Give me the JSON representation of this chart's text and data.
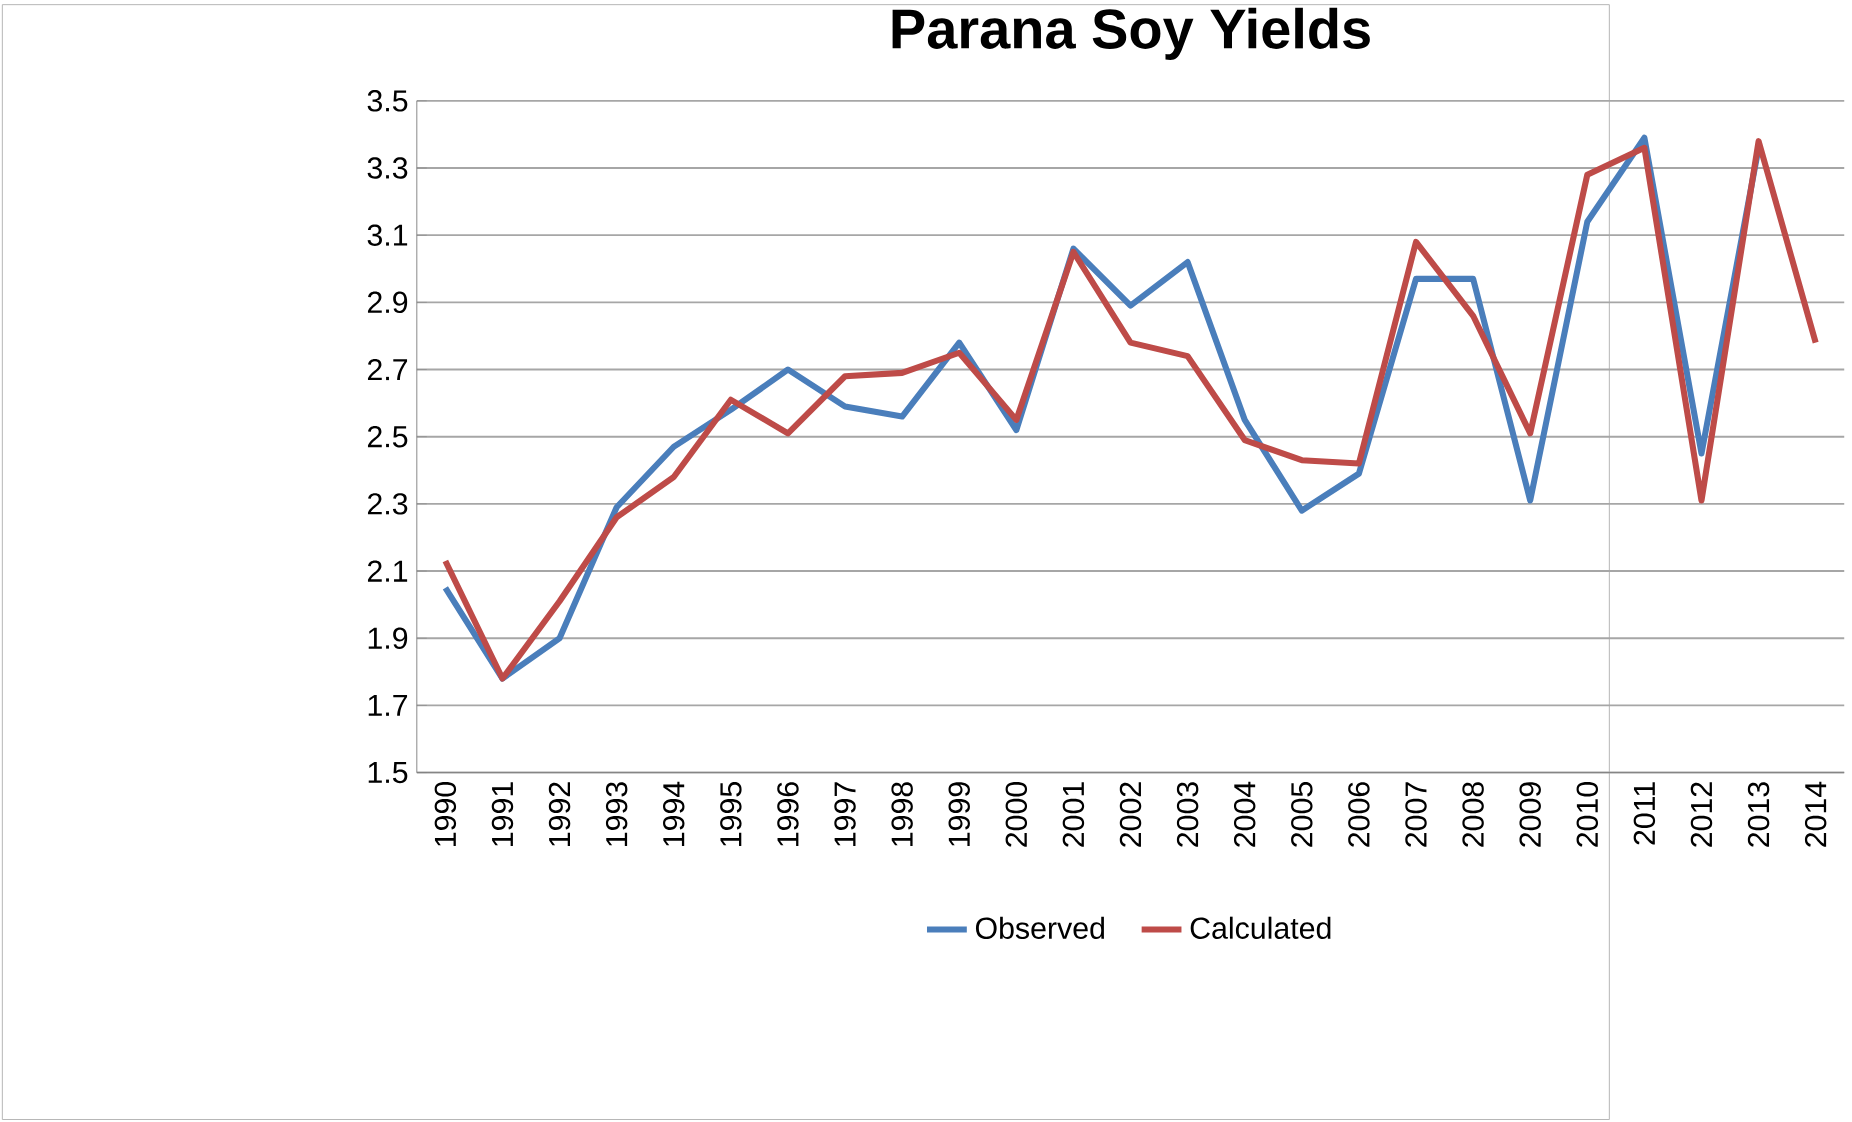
{
  "chart_data": {
    "type": "line",
    "title": "Parana Soy Yields",
    "categories": [
      "1990",
      "1991",
      "1992",
      "1993",
      "1994",
      "1995",
      "1996",
      "1997",
      "1998",
      "1999",
      "2000",
      "2001",
      "2002",
      "2003",
      "2004",
      "2005",
      "2006",
      "2007",
      "2008",
      "2009",
      "2010",
      "2011",
      "2012",
      "2013",
      "2014"
    ],
    "series": [
      {
        "name": "Observed",
        "color": "#4a7ebb",
        "values": [
          2.05,
          1.78,
          1.9,
          2.29,
          2.47,
          2.58,
          2.7,
          2.59,
          2.56,
          2.78,
          2.52,
          3.06,
          2.89,
          3.02,
          2.55,
          2.28,
          2.39,
          2.97,
          2.97,
          2.31,
          3.14,
          3.39,
          2.45,
          3.36,
          null
        ]
      },
      {
        "name": "Calculated",
        "color": "#be4b48",
        "values": [
          2.13,
          1.78,
          2.01,
          2.26,
          2.38,
          2.61,
          2.51,
          2.68,
          2.69,
          2.75,
          2.55,
          3.05,
          2.78,
          2.74,
          2.49,
          2.43,
          2.42,
          3.08,
          2.86,
          2.51,
          3.28,
          3.36,
          2.31,
          3.38,
          2.78
        ]
      }
    ],
    "ylim": [
      1.5,
      3.5
    ],
    "yticks": [
      1.5,
      1.7,
      1.9,
      2.1,
      2.3,
      2.5,
      2.7,
      2.9,
      3.1,
      3.3,
      3.5
    ],
    "grid": "y",
    "legend": "bottom",
    "marker": "none",
    "line_style": "solid"
  }
}
